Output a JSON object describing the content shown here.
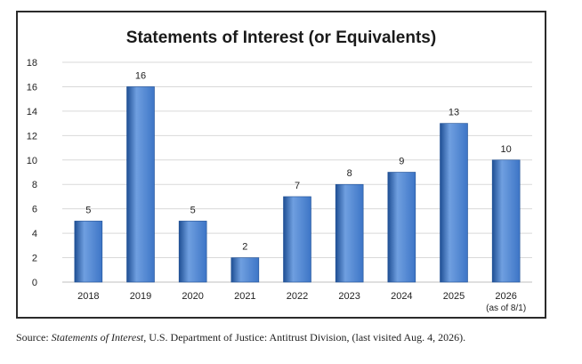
{
  "chart_data": {
    "type": "bar",
    "title": "Statements of Interest (or Equivalents)",
    "categories": [
      "2018",
      "2019",
      "2020",
      "2021",
      "2022",
      "2023",
      "2024",
      "2025",
      "2026"
    ],
    "category_sublabels": [
      "",
      "",
      "",
      "",
      "",
      "",
      "",
      "",
      "(as of 8/1)"
    ],
    "values": [
      5,
      16,
      5,
      2,
      7,
      8,
      9,
      13,
      10
    ],
    "ylim": [
      0,
      18
    ],
    "yticks": [
      0,
      2,
      4,
      6,
      8,
      10,
      12,
      14,
      16,
      18
    ],
    "grid": true,
    "bar_color": "#3d75c6",
    "bar_color_dark": "#1f4f94",
    "bar_color_light": "#6f9fe0"
  },
  "caption": {
    "prefix": "Source: ",
    "italic": "Statements of Interest",
    "suffix": ", U.S. Department of Justice: Antitrust Division, (last visited Aug. 4, 2026)."
  }
}
